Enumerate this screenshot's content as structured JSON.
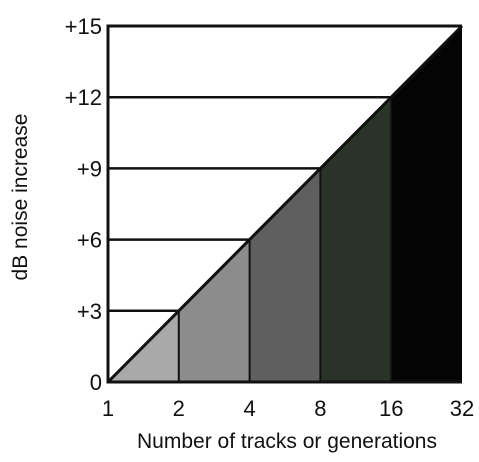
{
  "chart_data": {
    "type": "area",
    "title": "",
    "xlabel": "Number of tracks or generations",
    "ylabel": "dB noise increase",
    "x_scale": "log2",
    "x_ticks": [
      1,
      2,
      4,
      8,
      16,
      32
    ],
    "x_tick_labels": [
      "1",
      "2",
      "4",
      "8",
      "16",
      "32"
    ],
    "y_ticks": [
      0,
      3,
      6,
      9,
      12,
      15
    ],
    "y_tick_labels": [
      "0",
      "+3",
      "+6",
      "+9",
      "+12",
      "+15"
    ],
    "xlim": [
      1,
      32
    ],
    "ylim": [
      0,
      15
    ],
    "grid": "horizontal lines at each y tick, drawn from the y axis to the curve",
    "series": [
      {
        "x": [
          1,
          2,
          4,
          8,
          16,
          32
        ],
        "values": [
          0,
          3,
          6,
          9,
          12,
          15
        ]
      }
    ],
    "bands": [
      {
        "x_from": 1,
        "x_to": 2,
        "color": "#a9a9a9"
      },
      {
        "x_from": 2,
        "x_to": 4,
        "color": "#8c8c8c"
      },
      {
        "x_from": 4,
        "x_to": 8,
        "color": "#5f5f5f"
      },
      {
        "x_from": 8,
        "x_to": 16,
        "color": "#2a3328"
      },
      {
        "x_from": 16,
        "x_to": 32,
        "color": "#050505"
      }
    ],
    "colors": {
      "axis": "#111111",
      "line": "#111111",
      "text": "#111111"
    }
  }
}
